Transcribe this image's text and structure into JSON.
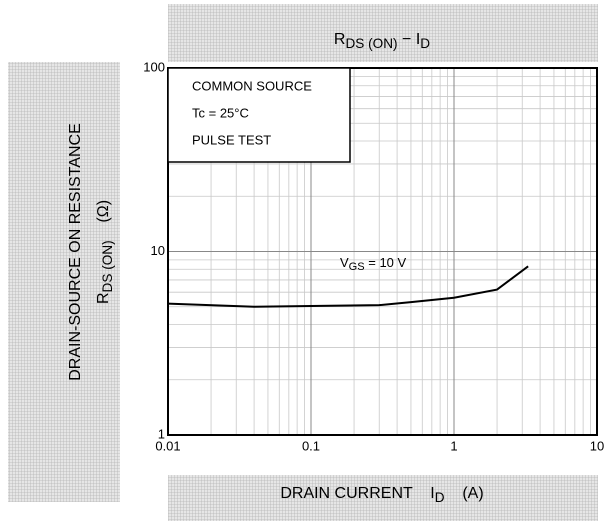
{
  "chart_data": {
    "type": "line",
    "title_parts": [
      {
        "text": "R"
      },
      {
        "text": "DS (ON)",
        "sub": true
      },
      {
        "text": " − I"
      },
      {
        "text": "D",
        "sub": true
      }
    ],
    "y_label_lines": [
      [
        {
          "text": "DRAIN-SOURCE ON RESISTANCE"
        }
      ],
      [
        {
          "text": "R"
        },
        {
          "text": "DS (ON)",
          "sub": true
        },
        {
          "text": "    (Ω)"
        }
      ]
    ],
    "x_label_parts": [
      {
        "text": "DRAIN CURRENT    I"
      },
      {
        "text": "D",
        "sub": true
      },
      {
        "text": "    (A)"
      }
    ],
    "legend_box_lines": [
      "COMMON SOURCE",
      "Tc = 25°C",
      "PULSE TEST"
    ],
    "annotation_parts": [
      {
        "text": "V"
      },
      {
        "text": "GS",
        "sub": true
      },
      {
        "text": " = 10 V"
      }
    ],
    "x": [
      0.01,
      0.04,
      0.1,
      0.3,
      0.5,
      1,
      2,
      3.3
    ],
    "series": [
      {
        "color": "#000000",
        "values": [
          5.2,
          5.0,
          5.05,
          5.1,
          5.3,
          5.6,
          6.2,
          8.3
        ]
      }
    ],
    "xlim": [
      0.01,
      10
    ],
    "ylim": [
      1,
      100
    ],
    "xticks": [
      0.01,
      0.1,
      1,
      10
    ],
    "yticks": [
      1,
      10,
      100
    ],
    "xscale": "log",
    "yscale": "log",
    "grid": true,
    "minor_grid": true
  }
}
